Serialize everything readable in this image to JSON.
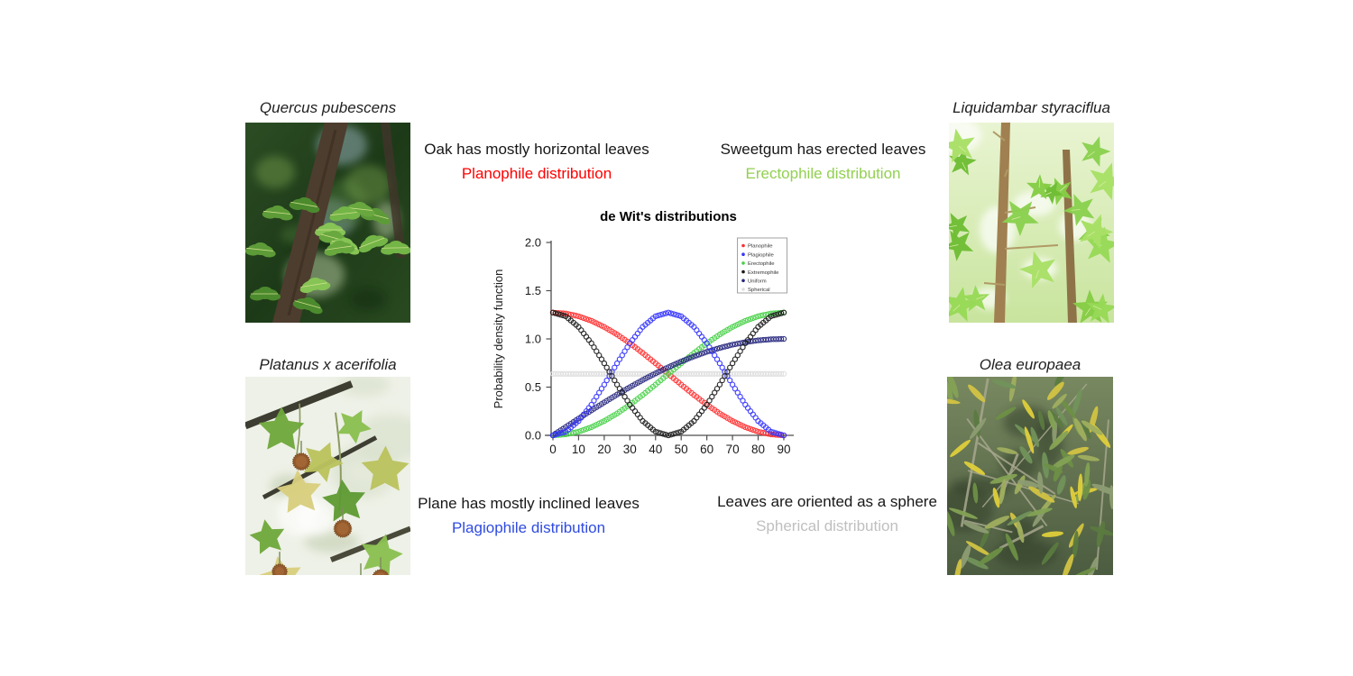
{
  "page": {
    "background": "#ffffff"
  },
  "species": {
    "quercus": {
      "label": "Quercus pubescens"
    },
    "platanus": {
      "label": "Platanus x acerifolia"
    },
    "liquidambar": {
      "label": "Liquidambar styraciflua"
    },
    "olea": {
      "label": "Olea europaea"
    }
  },
  "annotations": {
    "oak": {
      "line": "Oak has mostly horizontal leaves",
      "distribution": "Planophile distribution",
      "color": "#FF0000"
    },
    "sweetgum": {
      "line": "Sweetgum has erected leaves",
      "distribution": "Erectophile distribution",
      "color": "#92D050"
    },
    "plane": {
      "line": "Plane has mostly inclined leaves",
      "distribution": "Plagiophile distribution",
      "color": "#2F4BE0"
    },
    "sphere": {
      "line": "Leaves are oriented as a sphere",
      "distribution": "Spherical distribution",
      "color": "#BFBFBF"
    }
  },
  "chart_data": {
    "type": "scatter",
    "title": "de Wit's distributions",
    "xlabel": "",
    "ylabel": "Probability density function",
    "xlim": [
      0,
      90
    ],
    "ylim": [
      0.0,
      2.0
    ],
    "x_ticks": [
      0,
      10,
      20,
      30,
      40,
      50,
      60,
      70,
      80,
      90
    ],
    "y_ticks": [
      0.0,
      0.5,
      1.0,
      1.5,
      2.0
    ],
    "grid": false,
    "legend_position": "top-right",
    "marker": "open-circle",
    "x_step_deg": 5,
    "x": [
      0,
      5,
      10,
      15,
      20,
      25,
      30,
      35,
      40,
      45,
      50,
      55,
      60,
      65,
      70,
      75,
      80,
      85,
      90
    ],
    "series": [
      {
        "name": "Planophile",
        "color": "#FF2D2D",
        "values": [
          1.273,
          1.264,
          1.235,
          1.188,
          1.124,
          1.046,
          0.955,
          0.854,
          0.747,
          0.637,
          0.526,
          0.419,
          0.318,
          0.227,
          0.149,
          0.085,
          0.038,
          0.01,
          0.0
        ]
      },
      {
        "name": "Plagiophile",
        "color": "#3434FF",
        "values": [
          0.0,
          0.038,
          0.149,
          0.318,
          0.526,
          0.747,
          0.955,
          1.124,
          1.235,
          1.273,
          1.235,
          1.124,
          0.955,
          0.747,
          0.526,
          0.318,
          0.149,
          0.038,
          0.0
        ]
      },
      {
        "name": "Erectophile",
        "color": "#47D147",
        "values": [
          0.0,
          0.01,
          0.038,
          0.085,
          0.149,
          0.227,
          0.318,
          0.419,
          0.526,
          0.637,
          0.747,
          0.854,
          0.955,
          1.046,
          1.124,
          1.188,
          1.235,
          1.264,
          1.273
        ]
      },
      {
        "name": "Extremophile",
        "color": "#1A1A1A",
        "values": [
          1.273,
          1.235,
          1.124,
          0.955,
          0.747,
          0.526,
          0.318,
          0.149,
          0.038,
          0.0,
          0.038,
          0.149,
          0.318,
          0.526,
          0.747,
          0.955,
          1.124,
          1.235,
          1.273
        ]
      },
      {
        "name": "Uniform",
        "color": "#26267E",
        "values": [
          0.0,
          0.087,
          0.174,
          0.259,
          0.342,
          0.423,
          0.5,
          0.574,
          0.643,
          0.707,
          0.766,
          0.819,
          0.866,
          0.906,
          0.94,
          0.966,
          0.985,
          0.996,
          1.0
        ]
      },
      {
        "name": "Spherical",
        "color": "#DEDEDE",
        "values": [
          0.637,
          0.637,
          0.637,
          0.637,
          0.637,
          0.637,
          0.637,
          0.637,
          0.637,
          0.637,
          0.637,
          0.637,
          0.637,
          0.637,
          0.637,
          0.637,
          0.637,
          0.637,
          0.637
        ]
      }
    ]
  }
}
